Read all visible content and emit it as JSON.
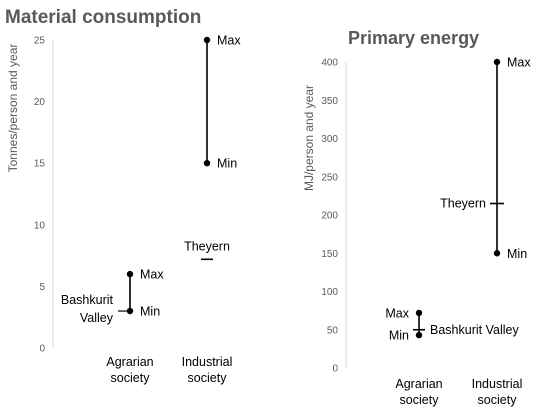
{
  "chart_data": [
    {
      "type": "range",
      "title": "Material consumption",
      "ylabel": "Tonnes/person and year",
      "ylim": [
        0,
        25
      ],
      "yticks": [
        0,
        5,
        10,
        15,
        20,
        25
      ],
      "categories": [
        "Agrarian society",
        "Industrial society"
      ],
      "category_lines": [
        [
          "Agrarian",
          "society"
        ],
        [
          "Industrial",
          "society"
        ]
      ],
      "grid": false,
      "ranges": [
        {
          "category": "Agrarian society",
          "min": 3,
          "max": 6,
          "label_min": "Min",
          "label_max": "Max"
        },
        {
          "category": "Industrial society",
          "min": 15,
          "max": 25,
          "label_min": "Min",
          "label_max": "Max"
        }
      ],
      "markers": [
        {
          "category": "Agrarian society",
          "value": 3,
          "label_lines": [
            "Bashkurit",
            "Valley"
          ]
        },
        {
          "category": "Industrial society",
          "value": 7.2,
          "label": "Theyern"
        }
      ]
    },
    {
      "type": "range",
      "title": "Primary energy",
      "ylabel": "MJ/person and year",
      "ylim": [
        0,
        400
      ],
      "yticks": [
        0,
        50,
        100,
        150,
        200,
        250,
        300,
        350,
        400
      ],
      "categories": [
        "Agrarian society",
        "Industrial society"
      ],
      "category_lines": [
        [
          "Agrarian",
          "society"
        ],
        [
          "Industrial",
          "society"
        ]
      ],
      "grid": false,
      "ranges": [
        {
          "category": "Agrarian society",
          "min": 43,
          "max": 72,
          "label_min": "Min",
          "label_max": "Max"
        },
        {
          "category": "Industrial society",
          "min": 150,
          "max": 400,
          "label_min": "Min",
          "label_max": "Max"
        }
      ],
      "markers": [
        {
          "category": "Agrarian society",
          "value": 50,
          "label": "Bashkurit Valley"
        },
        {
          "category": "Industrial society",
          "value": 215,
          "label": "Theyern"
        }
      ]
    }
  ]
}
